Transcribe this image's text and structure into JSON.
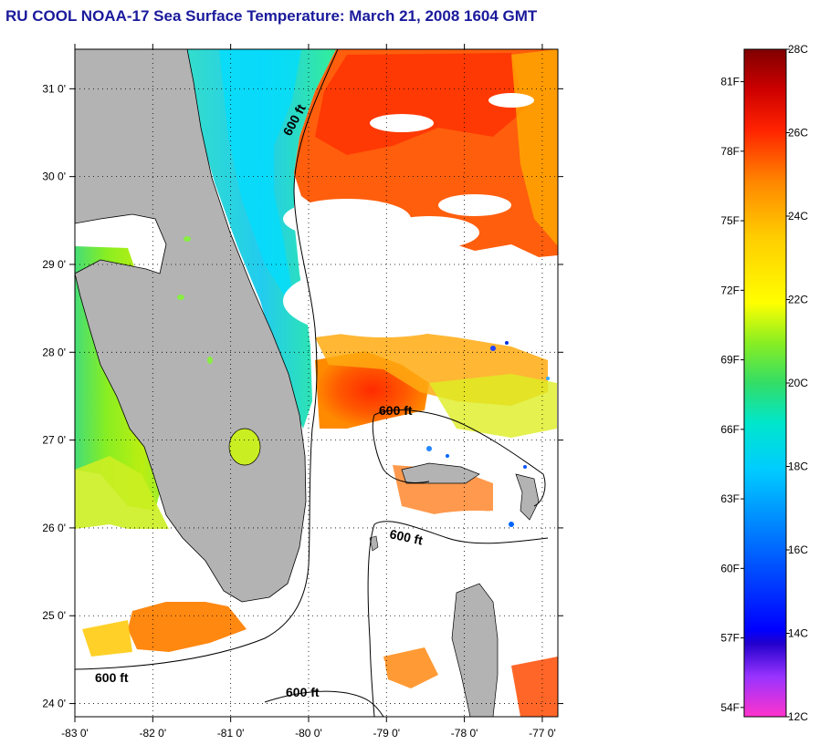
{
  "title": "RU COOL  NOAA-17  Sea Surface Temperature:  March 21, 2008 1604 GMT",
  "map": {
    "lat_ticks": [
      "31 0'",
      "30 0'",
      "29 0'",
      "28 0'",
      "27 0'",
      "26 0'",
      "25 0'",
      "24 0'"
    ],
    "lon_ticks": [
      "-83 0'",
      "-82 0'",
      "-81 0'",
      "-80 0'",
      "-79 0'",
      "-78 0'",
      "-77 0'"
    ],
    "lat_range": [
      23.85,
      31.45
    ],
    "lon_range": [
      -83,
      -76.8
    ],
    "contour_labels": [
      "600 ft",
      "600 ft",
      "600 ft",
      "600 ft",
      "600 ft"
    ],
    "land_color": "#b3b3b3",
    "grid": "dotted"
  },
  "colorbar": {
    "fahrenheit_labels": [
      "81F",
      "78F",
      "75F",
      "72F",
      "69F",
      "66F",
      "63F",
      "60F",
      "57F",
      "54F"
    ],
    "celsius_labels": [
      "28C",
      "26C",
      "24C",
      "22C",
      "20C",
      "18C",
      "16C",
      "14C",
      "12C"
    ],
    "range_c": [
      12,
      28
    ]
  }
}
